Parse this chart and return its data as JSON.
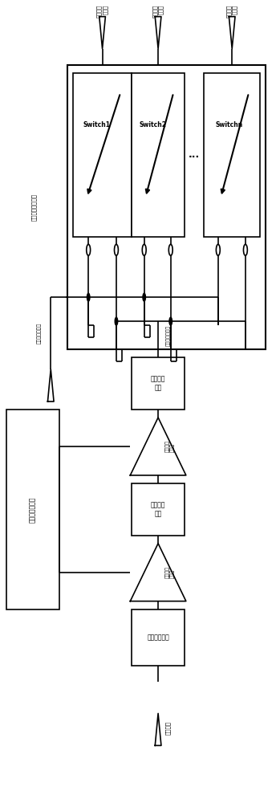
{
  "bg_color": "#ffffff",
  "switch_labels": [
    "Switch1",
    "Switch2",
    "Switchn"
  ],
  "switch_selector_label": "收发信号选通开关",
  "rxtx_pin_line1": "发射及接",
  "rxtx_pin_line2": "收引脚",
  "rx_common_label": "接收信号公共端",
  "tx_common_label": "发射信号公共端",
  "output_match_label": "输出匹配\n电路",
  "amp2_label": "第二级放\n大单元",
  "interstage_label": "级间匹配\n电路",
  "amp1_label": "第一级放\n大单元",
  "input_match_label": "输入匹配电路",
  "input_pin_label": "输入引脚",
  "ctrl_label": "控制及偏置单元"
}
